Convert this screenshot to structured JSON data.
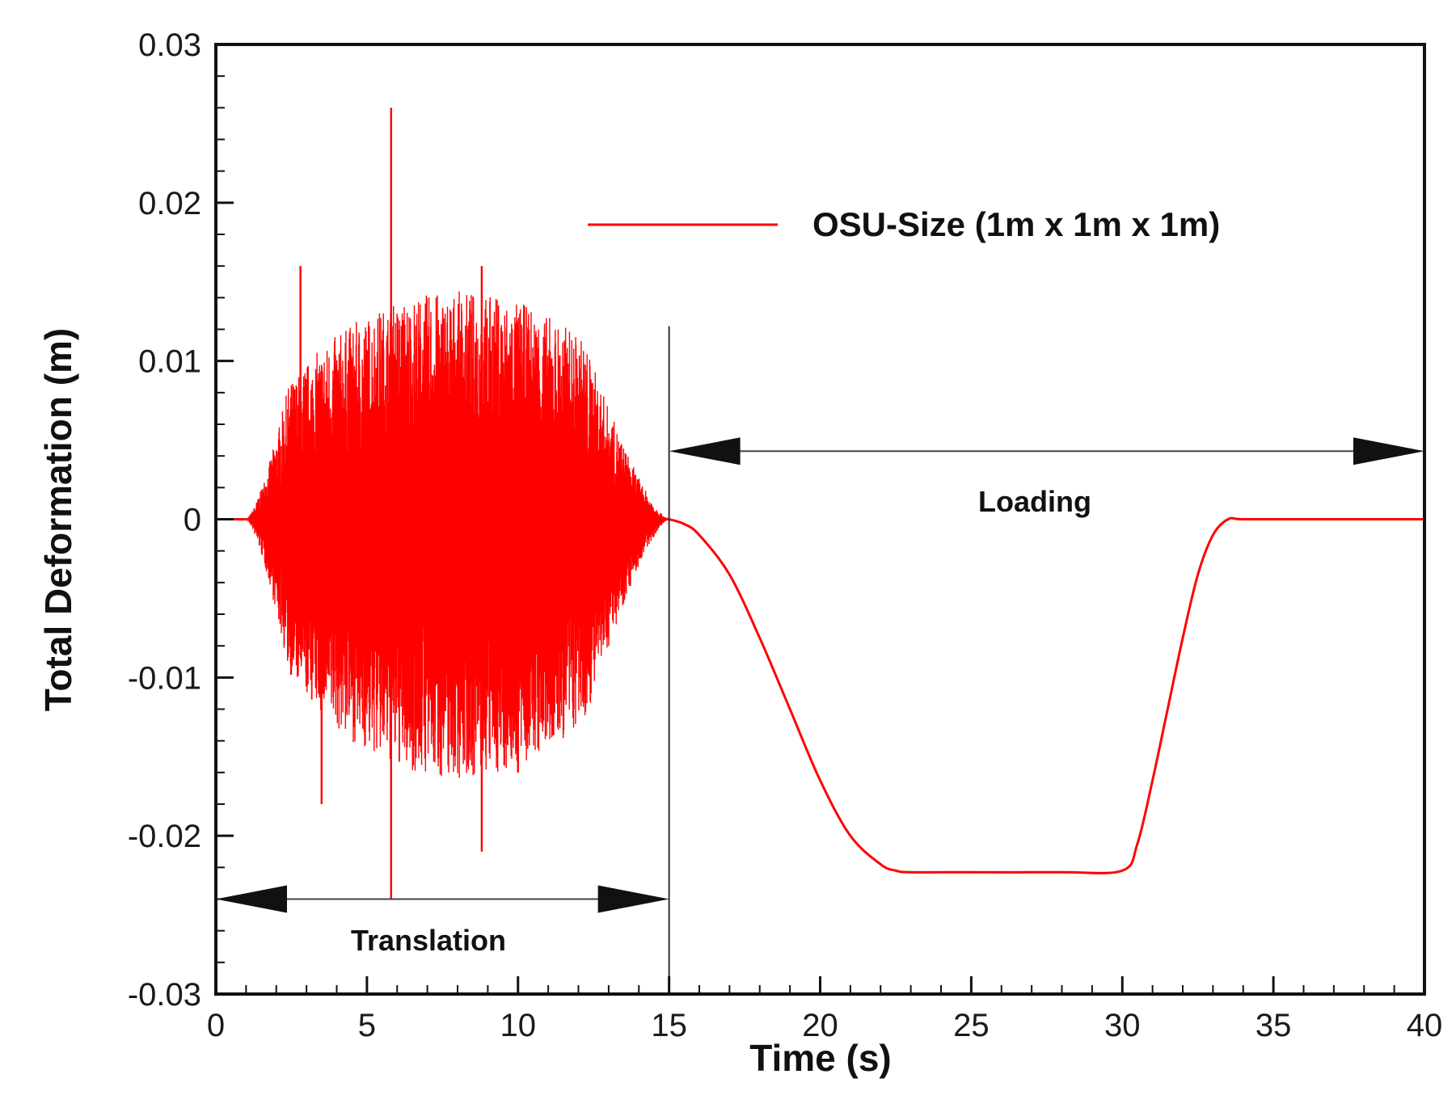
{
  "chart_data": {
    "type": "line",
    "title": "",
    "xlabel": "Time (s)",
    "ylabel": "Total Deformation (m)",
    "xlim": [
      0,
      40
    ],
    "ylim": [
      -0.03,
      0.03
    ],
    "x_ticks": [
      0,
      5,
      10,
      15,
      20,
      25,
      30,
      35,
      40
    ],
    "x_tick_labels": [
      "0",
      "5",
      "10",
      "15",
      "20",
      "25",
      "30",
      "35",
      "40"
    ],
    "y_ticks": [
      -0.03,
      -0.02,
      -0.01,
      0,
      0.01,
      0.02,
      0.03
    ],
    "y_tick_labels": [
      "-0.03",
      "-0.02",
      "-0.01",
      "0",
      "0.01",
      "0.02",
      "0.03"
    ],
    "grid": false,
    "legend_position": "top-right",
    "series": [
      {
        "name": "OSU-Size (1m x 1m x 1m)",
        "color": "#ff0000",
        "translation_phase": {
          "t_start": 1.0,
          "t_end": 15.0,
          "approx_envelope_max": 0.013,
          "approx_envelope_min": -0.015,
          "spikes": [
            {
              "x": 5.8,
              "y": 0.026
            },
            {
              "x": 5.8,
              "y": -0.024
            },
            {
              "x": 8.8,
              "y": -0.021
            },
            {
              "x": 3.5,
              "y": -0.018
            },
            {
              "x": 2.8,
              "y": 0.016
            },
            {
              "x": 8.8,
              "y": 0.016
            },
            {
              "x": 10.0,
              "y": -0.016
            }
          ]
        },
        "loading_phase": {
          "x": [
            15.0,
            15.5,
            16.0,
            17.0,
            18.0,
            19.0,
            20.0,
            21.0,
            22.0,
            22.5,
            23.0,
            25.0,
            28.0,
            30.0,
            30.5,
            31.0,
            31.5,
            32.0,
            32.5,
            33.0,
            33.5,
            34.0,
            36.0,
            38.0,
            40.0
          ],
          "y": [
            0.0,
            -0.0003,
            -0.001,
            -0.0035,
            -0.0075,
            -0.012,
            -0.0165,
            -0.02,
            -0.0218,
            -0.0222,
            -0.0223,
            -0.0223,
            -0.0223,
            -0.0222,
            -0.0205,
            -0.0165,
            -0.012,
            -0.0075,
            -0.0035,
            -0.001,
            0.0,
            0.0,
            0.0,
            0.0,
            0.0
          ]
        }
      }
    ],
    "annotations": {
      "translation": {
        "label": "Translation",
        "x_start": 0,
        "x_end": 15,
        "y": -0.024
      },
      "loading": {
        "label": "Loading",
        "x_start": 15,
        "x_end": 40,
        "y": 0.0043
      },
      "divider_x": 15,
      "divider_y_top": 0.0122
    }
  }
}
